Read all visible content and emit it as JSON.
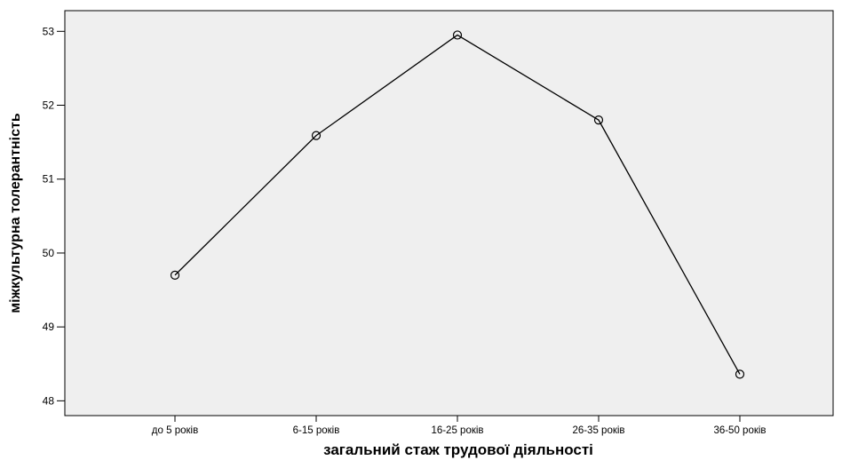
{
  "chart_data": {
    "type": "line",
    "title": "",
    "xlabel": "загальний стаж трудової діяльності",
    "ylabel": "міжкультурна толерантність",
    "categories": [
      "до 5 років",
      "6-15 років",
      "16-25 років",
      "26-35 років",
      "36-50 років"
    ],
    "series": [
      {
        "values": [
          49.7,
          51.59,
          52.95,
          51.8,
          48.36
        ]
      }
    ],
    "yticks": [
      48,
      49,
      50,
      51,
      52,
      53
    ],
    "ylim": [
      47.8,
      53.28
    ],
    "grid": false,
    "legend": "none",
    "colors": {
      "plot_background": "#efefef",
      "line": "#000000",
      "marker_stroke": "#000000"
    }
  }
}
